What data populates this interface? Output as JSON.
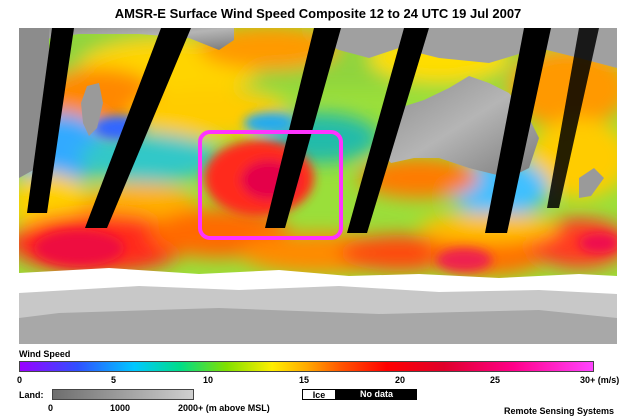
{
  "title": "AMSR-E Surface Wind Speed Composite  12 to 24 UTC  19 Jul 2007",
  "legend": {
    "wind_speed_label": "Wind Speed",
    "wind_ticks": [
      "0",
      "5",
      "10",
      "15",
      "20",
      "25",
      "30+ (m/s)"
    ],
    "land_label": "Land:",
    "land_ticks": [
      "0",
      "1000",
      "2000+ (m above MSL)"
    ],
    "ice_label": "Ice",
    "no_data_label": "No data"
  },
  "credit": "Remote Sensing Systems",
  "colors": {
    "highlight_box": "#ff33ff",
    "no_data": "#000000",
    "ice": "#ffffff"
  }
}
